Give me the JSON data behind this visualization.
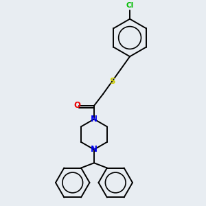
{
  "bg_color": "#e8edf2",
  "bond_color": "#000000",
  "N_color": "#0000ee",
  "O_color": "#ee0000",
  "S_color": "#cccc00",
  "Cl_color": "#00bb00",
  "lw": 1.4,
  "figsize": [
    3.0,
    3.0
  ],
  "dpi": 100,
  "xlim": [
    -4.5,
    4.5
  ],
  "ylim": [
    -5.5,
    5.5
  ]
}
